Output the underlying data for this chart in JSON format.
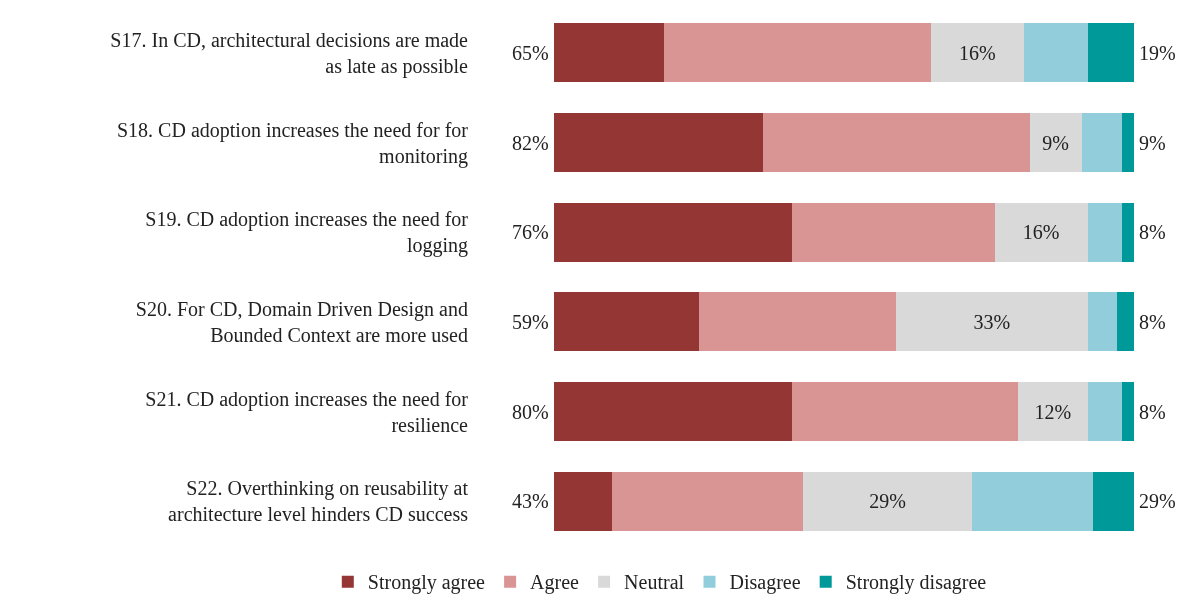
{
  "chart_data": {
    "type": "bar",
    "orientation": "horizontal",
    "stacked": true,
    "xlim": [
      0,
      100
    ],
    "tick_labels": false,
    "legend": "bottom",
    "categories": [
      "S17. In CD, architectural decisions are made as late as possible",
      "S18. CD adoption increases the need for for monitoring",
      "S19. CD adoption increases the need for logging",
      "S20. For CD, Domain Driven Design and Bounded Context are more used",
      "S21. CD adoption increases the need for resilience",
      "S22. Overthinking on reusability at architecture level hinders CD success"
    ],
    "series": [
      {
        "name": "Strongly agree",
        "color": "#943634",
        "values": [
          19,
          36,
          41,
          25,
          41,
          10
        ]
      },
      {
        "name": "Agree",
        "color": "#d99594",
        "values": [
          46,
          46,
          35,
          34,
          39,
          33
        ]
      },
      {
        "name": "Neutral",
        "color": "#d9d9d9",
        "values": [
          16,
          9,
          16,
          33,
          12,
          29
        ],
        "value_labels": [
          "16%",
          "9%",
          "16%",
          "33%",
          "12%",
          "29%"
        ]
      },
      {
        "name": "Disagree",
        "color": "#92cddc",
        "values": [
          11,
          7,
          6,
          5,
          6,
          21
        ]
      },
      {
        "name": "Strongly disagree",
        "color": "#009999",
        "values": [
          8,
          2,
          2,
          3,
          2,
          7
        ]
      }
    ],
    "annotations": [
      "65%",
      "19%",
      "82%",
      "9%",
      "76%",
      "8%",
      "59%",
      "8%",
      "80%",
      "8%",
      "43%",
      "29%"
    ]
  }
}
